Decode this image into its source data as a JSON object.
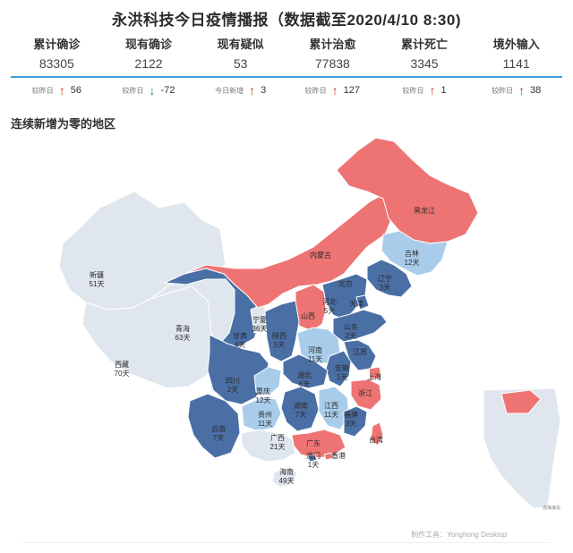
{
  "header": {
    "title": "永洪科技今日疫情播报（数据截至2020/4/10 8:30)"
  },
  "stats": [
    {
      "label": "累计确诊",
      "value": "83305",
      "change_label": "较昨日",
      "direction": "up",
      "change": "56"
    },
    {
      "label": "现有确诊",
      "value": "2122",
      "change_label": "较昨日",
      "direction": "down",
      "change": "-72"
    },
    {
      "label": "现有疑似",
      "value": "53",
      "change_label": "今日新增",
      "direction": "up",
      "change": "3"
    },
    {
      "label": "累计治愈",
      "value": "77838",
      "change_label": "较昨日",
      "direction": "up",
      "change": "127"
    },
    {
      "label": "累计死亡",
      "value": "3345",
      "change_label": "较昨日",
      "direction": "up",
      "change": "1"
    },
    {
      "label": "境外输入",
      "value": "1141",
      "change_label": "较昨日",
      "direction": "up",
      "change": "38"
    }
  ],
  "section": {
    "title": "连续新增为零的地区"
  },
  "colors": {
    "new_cases": "#ee7474",
    "zero_long": "#4a6fa5",
    "zero_medium": "#a9cceb",
    "zero_very_long": "#dfe6ee",
    "accent_line": "#3aa0d8"
  },
  "map": {
    "regions": [
      {
        "name": "新疆",
        "days": "51天",
        "category": "zero_very_long"
      },
      {
        "name": "西藏",
        "days": "70天",
        "category": "zero_very_long"
      },
      {
        "name": "青海",
        "days": "63天",
        "category": "zero_very_long"
      },
      {
        "name": "甘肃",
        "days": "4天",
        "category": "zero_long"
      },
      {
        "name": "宁夏",
        "days": "36天",
        "category": "zero_very_long"
      },
      {
        "name": "内蒙古",
        "days": "",
        "category": "new_cases"
      },
      {
        "name": "黑龙江",
        "days": "",
        "category": "new_cases"
      },
      {
        "name": "吉林",
        "days": "12天",
        "category": "zero_medium"
      },
      {
        "name": "辽宁",
        "days": "3天",
        "category": "zero_long"
      },
      {
        "name": "北京",
        "days": "",
        "category": "zero_long"
      },
      {
        "name": "河北",
        "days": "5天",
        "category": "zero_long"
      },
      {
        "name": "天津",
        "days": "",
        "category": "zero_long"
      },
      {
        "name": "山西",
        "days": "",
        "category": "new_cases"
      },
      {
        "name": "陕西",
        "days": "5天",
        "category": "zero_long"
      },
      {
        "name": "山东",
        "days": "2天",
        "category": "zero_long"
      },
      {
        "name": "河南",
        "days": "11天",
        "category": "zero_medium"
      },
      {
        "name": "江苏",
        "days": "",
        "category": "zero_long"
      },
      {
        "name": "安徽",
        "days": "1天",
        "category": "zero_long"
      },
      {
        "name": "上海",
        "days": "",
        "category": "new_cases"
      },
      {
        "name": "湖北",
        "days": "6天",
        "category": "zero_long"
      },
      {
        "name": "四川",
        "days": "2天",
        "category": "zero_long"
      },
      {
        "name": "重庆",
        "days": "12天",
        "category": "zero_medium"
      },
      {
        "name": "浙江",
        "days": "",
        "category": "new_cases"
      },
      {
        "name": "贵州",
        "days": "11天",
        "category": "zero_medium"
      },
      {
        "name": "湖南",
        "days": "7天",
        "category": "zero_long"
      },
      {
        "name": "江西",
        "days": "11天",
        "category": "zero_medium"
      },
      {
        "name": "福建",
        "days": "3天",
        "category": "zero_long"
      },
      {
        "name": "云南",
        "days": "7天",
        "category": "zero_long"
      },
      {
        "name": "广西",
        "days": "21天",
        "category": "zero_very_long"
      },
      {
        "name": "广东",
        "days": "",
        "category": "new_cases"
      },
      {
        "name": "台湾",
        "days": "",
        "category": "new_cases"
      },
      {
        "name": "澳门",
        "days": "1天",
        "category": "zero_long"
      },
      {
        "name": "香港",
        "days": "",
        "category": "new_cases"
      },
      {
        "name": "海南",
        "days": "49天",
        "category": "zero_very_long"
      }
    ]
  },
  "footer": {
    "credit": "制作工具：Yonghong Desktop",
    "small_note": "南海诸岛"
  }
}
